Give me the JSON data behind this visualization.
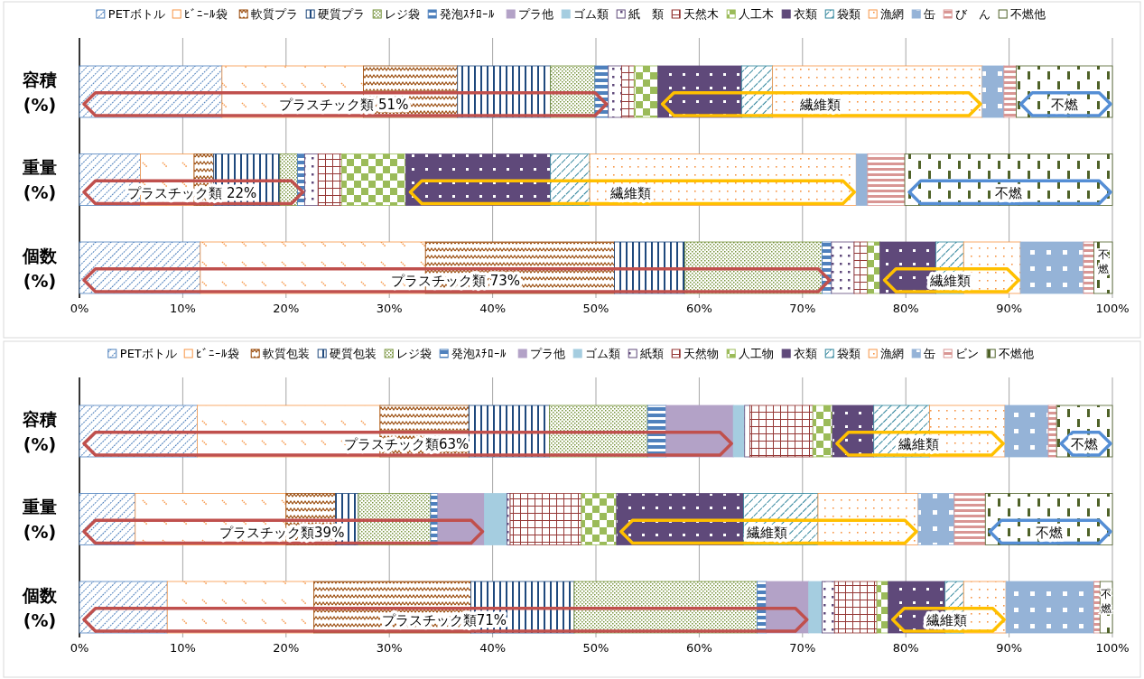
{
  "chart_data": [
    {
      "type": "bar",
      "orientation": "horizontal",
      "stacked": true,
      "grid": "x",
      "legend": "top",
      "categories": [
        "容積\n(%)",
        "重量\n(%)",
        "個数\n(%)"
      ],
      "xlim": [
        0,
        100
      ],
      "xticks": [
        {
          "value": 0,
          "label": "0%"
        },
        {
          "value": 10,
          "label": "10%"
        },
        {
          "value": 20,
          "label": "20%"
        },
        {
          "value": 30,
          "label": "30%"
        },
        {
          "value": 40,
          "label": "40%"
        },
        {
          "value": 50,
          "label": "50%"
        },
        {
          "value": 60,
          "label": "60%"
        },
        {
          "value": 70,
          "label": "70%"
        },
        {
          "value": 80,
          "label": "80%"
        },
        {
          "value": 90,
          "label": "90%"
        },
        {
          "value": 100,
          "label": "100%"
        }
      ],
      "series": [
        {
          "name": "PETボトル",
          "color": "#4f81bd",
          "values": [
            13.8,
            5.9,
            11.7
          ]
        },
        {
          "name": "ﾋﾞﾆｰﾙ袋",
          "color": "#f79646",
          "values": [
            13.7,
            5.2,
            21.8
          ]
        },
        {
          "name": "軟質プラ",
          "color": "#984807",
          "values": [
            9.1,
            1.9,
            18.3
          ]
        },
        {
          "name": "硬質プラ",
          "color": "#1f497d",
          "values": [
            9.0,
            6.4,
            6.8
          ]
        },
        {
          "name": "レジ袋",
          "color": "#77933c",
          "values": [
            4.3,
            1.7,
            13.3
          ]
        },
        {
          "name": "発泡ｽﾁﾛｰﾙ",
          "color": "#4f81bd",
          "values": [
            1.3,
            0.7,
            0.9
          ]
        },
        {
          "name": "プラ他",
          "color": "#b3a2c7",
          "values": [
            0,
            0,
            0
          ]
        },
        {
          "name": "ゴム類",
          "color": "#a5cde0",
          "values": [
            0,
            0,
            0
          ]
        },
        {
          "name": "紙　類",
          "color": "#604a7b",
          "values": [
            1.3,
            1.3,
            2.2
          ]
        },
        {
          "name": "天然木",
          "color": "#953735",
          "values": [
            1.2,
            2.3,
            1.3
          ]
        },
        {
          "name": "人工木",
          "color": "#9bbb59",
          "values": [
            2.3,
            6.2,
            1.2
          ]
        },
        {
          "name": "衣類",
          "color": "#5f497a",
          "values": [
            8.1,
            14.0,
            5.4
          ]
        },
        {
          "name": "袋類",
          "color": "#31859c",
          "values": [
            3.0,
            3.8,
            2.7
          ]
        },
        {
          "name": "漁網",
          "color": "#f79646",
          "values": [
            20.3,
            25.8,
            5.5
          ]
        },
        {
          "name": "缶",
          "color": "#95b3d7",
          "values": [
            2.1,
            1.1,
            6.1
          ]
        },
        {
          "name": "び　ん",
          "color": "#d99694",
          "values": [
            1.2,
            3.6,
            1.0
          ]
        },
        {
          "name": "不燃他",
          "color": "#4f6228",
          "values": [
            9.3,
            20.1,
            1.8
          ]
        }
      ],
      "annotations": [
        "プラスチック類 51%",
        "繊維類",
        "不燃",
        "プラスチック類 22%",
        "繊維類",
        "不燃",
        "プラスチック類 73%",
        "繊維類",
        "不燃"
      ]
    },
    {
      "type": "bar",
      "orientation": "horizontal",
      "stacked": true,
      "grid": "x",
      "legend": "top",
      "categories": [
        "容積\n(%)",
        "重量\n(%)",
        "個数\n(%)"
      ],
      "xlim": [
        0,
        100
      ],
      "xticks": [
        {
          "value": 0,
          "label": "0%"
        },
        {
          "value": 10,
          "label": "10%"
        },
        {
          "value": 20,
          "label": "20%"
        },
        {
          "value": 30,
          "label": "30%"
        },
        {
          "value": 40,
          "label": "40%"
        },
        {
          "value": 50,
          "label": "50%"
        },
        {
          "value": 60,
          "label": "60%"
        },
        {
          "value": 70,
          "label": "70%"
        },
        {
          "value": 80,
          "label": "80%"
        },
        {
          "value": 90,
          "label": "90%"
        },
        {
          "value": 100,
          "label": "100%"
        }
      ],
      "series": [
        {
          "name": "PETボトル",
          "color": "#4f81bd",
          "values": [
            11.4,
            5.4,
            8.5
          ]
        },
        {
          "name": "ﾋﾞﾆｰﾙ袋",
          "color": "#f79646",
          "values": [
            17.7,
            14.6,
            14.2
          ]
        },
        {
          "name": "軟質包装",
          "color": "#984807",
          "values": [
            8.6,
            4.8,
            15.2
          ]
        },
        {
          "name": "硬質包装",
          "color": "#1f497d",
          "values": [
            7.8,
            2.2,
            10.0
          ]
        },
        {
          "name": "レジ袋",
          "color": "#77933c",
          "values": [
            9.5,
            7.0,
            17.7
          ]
        },
        {
          "name": "発泡ｽﾁﾛｰﾙ",
          "color": "#4f81bd",
          "values": [
            1.8,
            0.7,
            0.9
          ]
        },
        {
          "name": "プラ他",
          "color": "#b3a2c7",
          "values": [
            6.5,
            4.5,
            4.1
          ]
        },
        {
          "name": "ゴム類",
          "color": "#a5cde0",
          "values": [
            1.1,
            2.2,
            1.3
          ]
        },
        {
          "name": "紙類",
          "color": "#604a7b",
          "values": [
            0.5,
            0.3,
            1.2
          ]
        },
        {
          "name": "天然物",
          "color": "#953735",
          "values": [
            6.1,
            6.9,
            4.1
          ]
        },
        {
          "name": "人工物",
          "color": "#9bbb59",
          "values": [
            1.9,
            3.4,
            1.1
          ]
        },
        {
          "name": "衣類",
          "color": "#5f497a",
          "values": [
            4.0,
            12.3,
            5.5
          ]
        },
        {
          "name": "袋類",
          "color": "#31859c",
          "values": [
            5.4,
            7.2,
            1.8
          ]
        },
        {
          "name": "漁網",
          "color": "#f79646",
          "values": [
            7.3,
            9.7,
            4.1
          ]
        },
        {
          "name": "缶",
          "color": "#95b3d7",
          "values": [
            4.2,
            3.5,
            8.5
          ]
        },
        {
          "name": "ビン",
          "color": "#d99694",
          "values": [
            0.8,
            3.0,
            0.6
          ]
        },
        {
          "name": "不燃他",
          "color": "#4f6228",
          "values": [
            5.4,
            12.3,
            1.2
          ]
        }
      ],
      "annotations": [
        "プラスチック類63%",
        "繊維類",
        "不燃",
        "プラスチック類39%",
        "繊維類",
        "不燃",
        "プラスチック類71%",
        "繊維類",
        "不燃"
      ]
    }
  ]
}
